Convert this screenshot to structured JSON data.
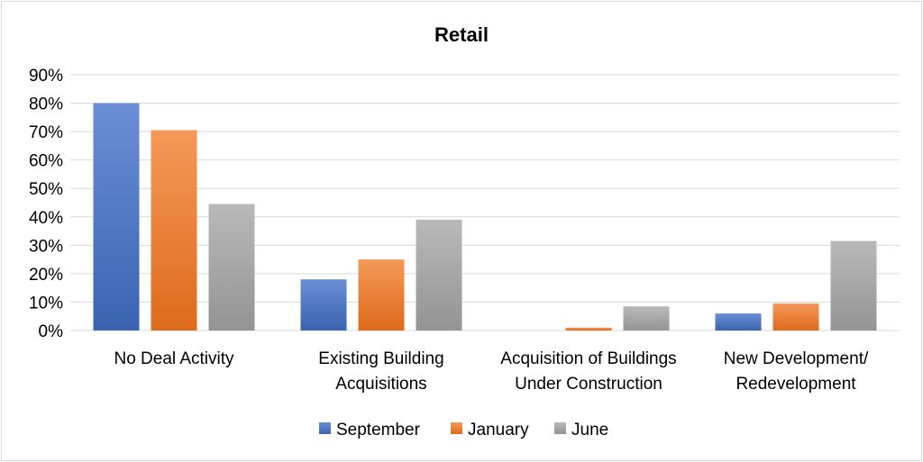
{
  "chart_data": {
    "type": "bar",
    "title": "Retail",
    "categories": [
      [
        "No Deal Activity"
      ],
      [
        "Existing Building",
        "Acquisitions"
      ],
      [
        "Acquisition of Buildings",
        "Under Construction"
      ],
      [
        "New Development/",
        "Redevelopment"
      ]
    ],
    "series": [
      {
        "name": "September",
        "values": [
          80,
          18,
          0,
          6
        ],
        "color": "#4472c4",
        "color_light": "#6b8fd6",
        "color_dark": "#3a63b0"
      },
      {
        "name": "January",
        "values": [
          70.5,
          25,
          1,
          9.5
        ],
        "color": "#ed7d31",
        "color_light": "#f4995a",
        "color_dark": "#de6a1c"
      },
      {
        "name": "June",
        "values": [
          44.5,
          39,
          8.5,
          31.5
        ],
        "color": "#a5a5a5",
        "color_light": "#b9b9b9",
        "color_dark": "#949494"
      }
    ],
    "yticks": [
      "0%",
      "10%",
      "20%",
      "30%",
      "40%",
      "50%",
      "60%",
      "70%",
      "80%",
      "90%"
    ],
    "ylim": [
      0,
      90
    ],
    "grid": true,
    "legend": "bottom",
    "gridline_color": "#d9d9d9"
  }
}
